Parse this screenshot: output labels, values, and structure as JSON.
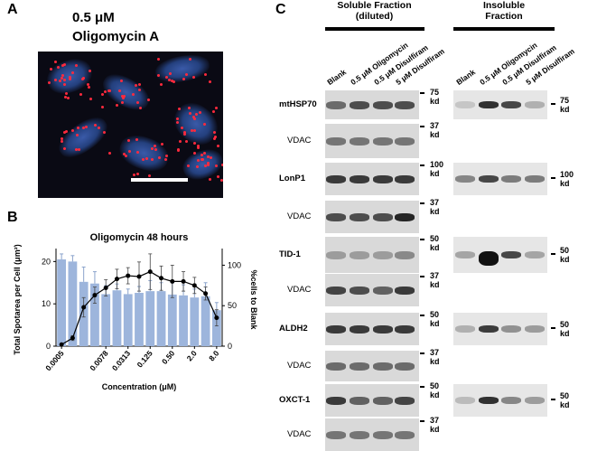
{
  "panels": {
    "a": {
      "letter": "A",
      "conc": "0.5 μM",
      "drug": "Oligomycin A"
    },
    "b": {
      "letter": "B"
    },
    "c": {
      "letter": "C"
    }
  },
  "blot": {
    "soluble_header": "Soluble Fraction",
    "soluble_sub": "(diluted)",
    "insoluble_header": "Insoluble",
    "insoluble_sub": "Fraction",
    "lanes": [
      "Blank",
      "0.5 μM  Oligomycin",
      "0.5 μM  Disulfiram",
      "5 μM  Disulfiram"
    ],
    "rows": [
      {
        "label": "mtHSP70",
        "bold": true,
        "kd_left": "75\nkd",
        "kd_right": "75\nkd"
      },
      {
        "label": "VDAC",
        "bold": false,
        "kd_left": "37\nkd"
      },
      {
        "label": "LonP1",
        "bold": true,
        "kd_left": "100\nkd",
        "kd_right": "100\nkd"
      },
      {
        "label": "VDAC",
        "bold": false,
        "kd_left": "37\nkd"
      },
      {
        "label": "TID-1",
        "bold": true,
        "kd_left": "50\nkd",
        "kd_right": "50\nkd"
      },
      {
        "label": "VDAC",
        "bold": false,
        "kd_left": "37\nkd"
      },
      {
        "label": "ALDH2",
        "bold": true,
        "kd_left": "50\nkd",
        "kd_right": "50\nkd"
      },
      {
        "label": "VDAC",
        "bold": false,
        "kd_left": "37\nkd"
      },
      {
        "label": "OXCT-1",
        "bold": true,
        "kd_left": "50\nkd",
        "kd_right": "50\nkd"
      },
      {
        "label": "VDAC",
        "bold": false,
        "kd_left": "37\nkd"
      }
    ]
  },
  "chart_data": {
    "type": "bar",
    "title": "Oligomycin 48 hours",
    "xlabel": "Concentration (μM)",
    "ylabel": "Total Spotarea per Cell (μm²)",
    "y2label": "%cells to Blank",
    "tick_labels_shown": [
      "0.0005",
      "0.0020",
      "0.0078",
      "0.0313",
      "0.125",
      "0.50",
      "2.0",
      "8.0"
    ],
    "categories": [
      "0.0005",
      "0.001",
      "0.002",
      "0.0039",
      "0.0078",
      "0.0156",
      "0.0313",
      "0.0625",
      "0.125",
      "0.25",
      "0.5",
      "1.0",
      "2.0",
      "4.0",
      "8.0"
    ],
    "ylim": [
      0,
      22
    ],
    "yticks": [
      0,
      10,
      20
    ],
    "y2lim": [
      0,
      115
    ],
    "y2ticks": [
      0,
      50,
      100
    ],
    "series": [
      {
        "kind": "bar",
        "axis": "left",
        "color": "#9db5dc",
        "values": [
          20.5,
          20.0,
          15.2,
          14.8,
          12.3,
          13.2,
          12.3,
          12.6,
          13.0,
          13.0,
          12.2,
          12.0,
          11.5,
          11.8,
          8.5
        ],
        "errors": [
          1.3,
          1.4,
          3.5,
          2.8,
          2.0,
          1.5,
          1.2,
          1.5,
          2.5,
          2.0,
          2.8,
          2.5,
          2.0,
          3.2,
          1.8
        ]
      },
      {
        "kind": "line",
        "axis": "right",
        "color": "#000000",
        "values": [
          2,
          10,
          48,
          63,
          72,
          83,
          87,
          86,
          92,
          84,
          80,
          80,
          75,
          65,
          35
        ],
        "errors": [
          0,
          3,
          12,
          10,
          10,
          12,
          10,
          18,
          22,
          15,
          20,
          12,
          10,
          8,
          10
        ]
      }
    ]
  }
}
